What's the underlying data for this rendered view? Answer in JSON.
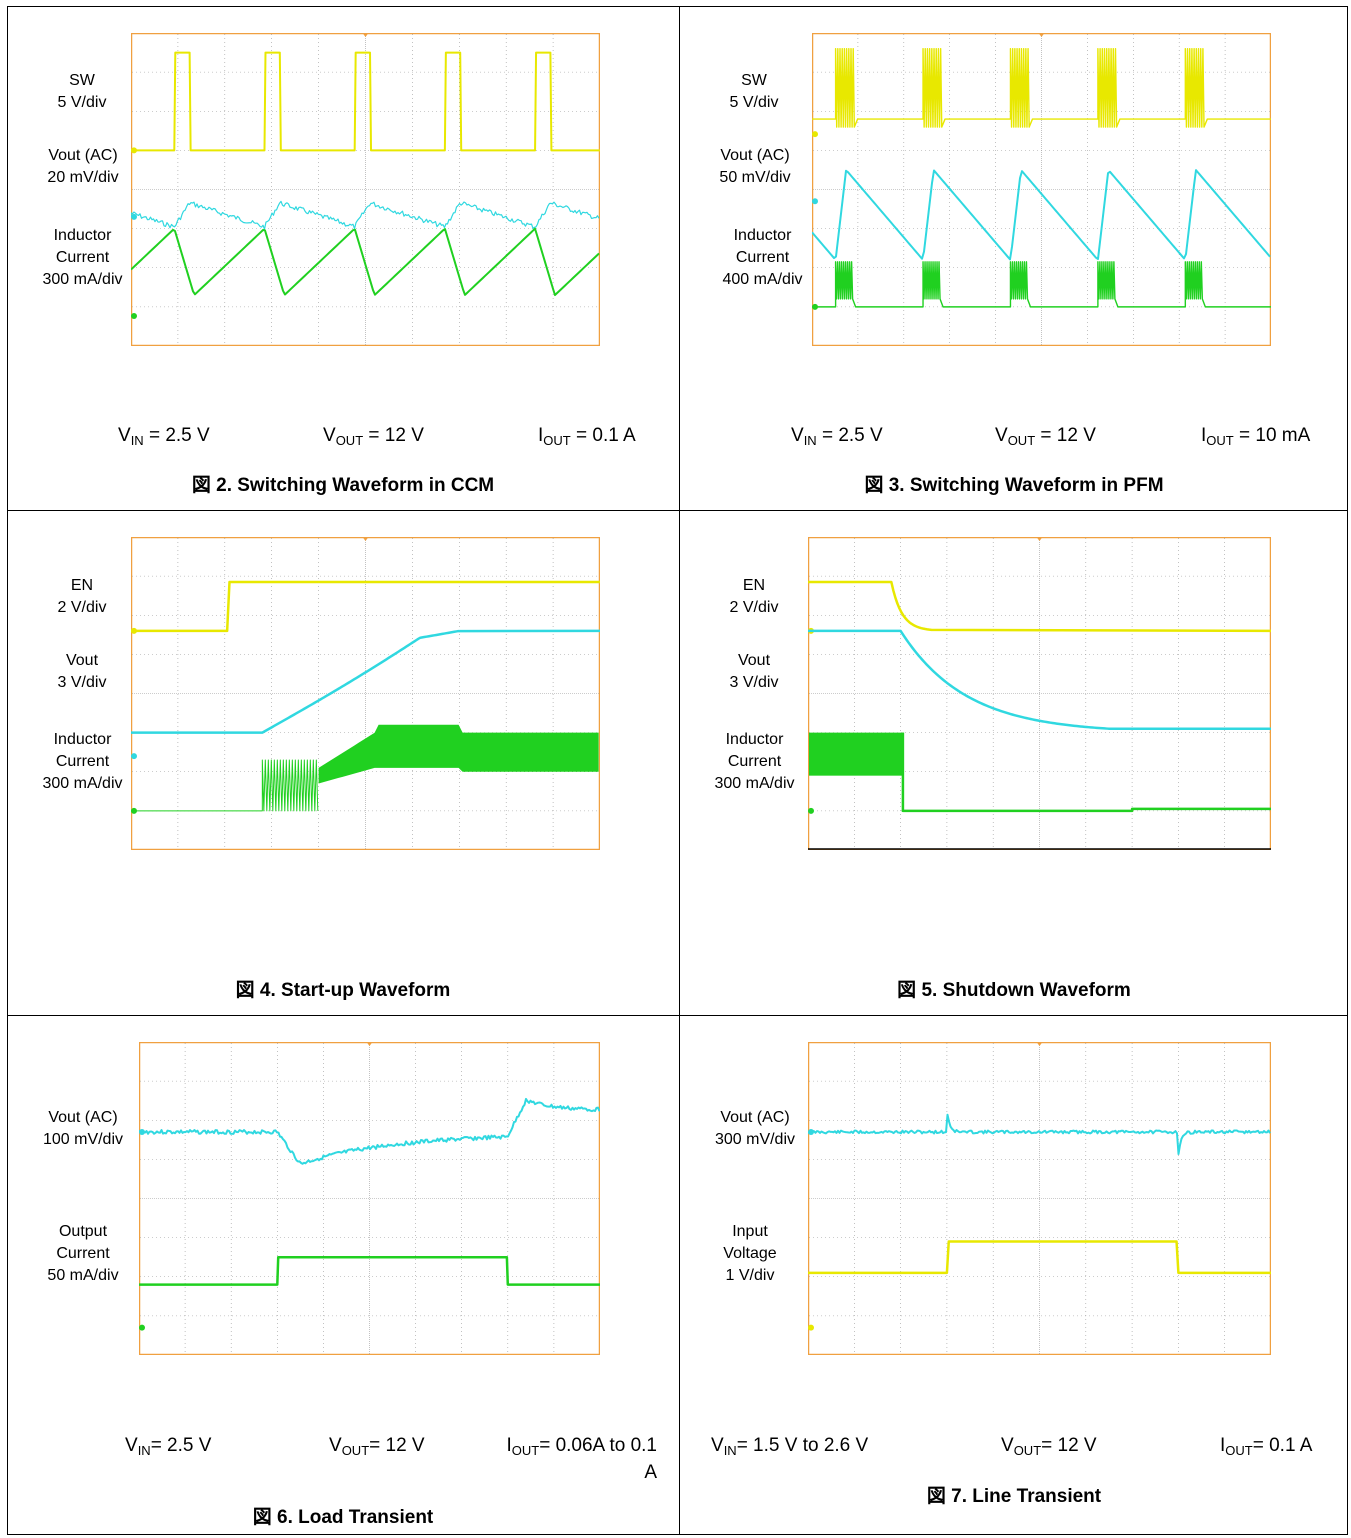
{
  "colors": {
    "grid": "#9a9a9a",
    "border": "#f0a040",
    "yellow": "#e8e800",
    "cyan": "#30d8e0",
    "green": "#20d020"
  },
  "chart_data": [
    {
      "type": "line",
      "figure": "fig2",
      "caption": "図 2. Switching Waveform in CCM",
      "grid": true,
      "divisions": {
        "x": 10,
        "y": 8
      },
      "channels": [
        {
          "name_lines": [
            "SW",
            "5 V/div"
          ],
          "color": "yellow",
          "waveform": "pulse-train",
          "baseline_div": 1.8,
          "high_div": 0.2,
          "periods": 5,
          "duty": 0.17
        },
        {
          "name_lines": [
            "Vout (AC)",
            "20 mV/div"
          ],
          "color": "cyan",
          "waveform": "ripple",
          "baseline_div": 3.4,
          "periods": 5
        },
        {
          "name_lines": [
            "Inductor",
            "Current",
            "300 mA/div"
          ],
          "color": "green",
          "waveform": "triangle",
          "baseline_div": 4.8,
          "amplitude_div": 1.0,
          "periods": 5
        }
      ],
      "conditions": [
        {
          "main": "V",
          "sub": "IN",
          "rest": " = 2.5 V"
        },
        {
          "main": "V",
          "sub": "OUT",
          "rest": " = 12 V"
        },
        {
          "main": "I",
          "sub": "OUT",
          "rest": " = 0.1 A"
        }
      ]
    },
    {
      "type": "line",
      "figure": "fig3",
      "caption": "図 3. Switching Waveform in PFM",
      "grid": true,
      "divisions": {
        "x": 10,
        "y": 8
      },
      "channels": [
        {
          "name_lines": [
            "SW",
            "5 V/div"
          ],
          "color": "yellow",
          "waveform": "burst",
          "baseline_div": 2.2,
          "high_div": 1.0,
          "periods": 5
        },
        {
          "name_lines": [
            "Vout (AC)",
            "50 mV/div"
          ],
          "color": "cyan",
          "waveform": "sawtooth",
          "baseline_div": 4.0,
          "periods": 5
        },
        {
          "name_lines": [
            "Inductor",
            "Current",
            "400 mA/div"
          ],
          "color": "green",
          "waveform": "burst-low",
          "baseline_div": 7.0,
          "periods": 5
        }
      ],
      "conditions": [
        {
          "main": "V",
          "sub": "IN",
          "rest": " = 2.5 V"
        },
        {
          "main": "V",
          "sub": "OUT",
          "rest": " = 12 V"
        },
        {
          "main": "I",
          "sub": "OUT",
          "rest": " = 10 mA"
        }
      ]
    },
    {
      "type": "line",
      "figure": "fig4",
      "caption": "図 4. Start-up Waveform",
      "grid": true,
      "divisions": {
        "x": 10,
        "y": 8
      },
      "channels": [
        {
          "name_lines": [
            "EN",
            "2 V/div"
          ],
          "color": "yellow",
          "waveform": "step-up"
        },
        {
          "name_lines": [
            "Vout",
            "3 V/div"
          ],
          "color": "cyan",
          "waveform": "ramp-up"
        },
        {
          "name_lines": [
            "Inductor",
            "Current",
            "300 mA/div"
          ],
          "color": "green",
          "waveform": "startup-current"
        }
      ],
      "conditions": []
    },
    {
      "type": "line",
      "figure": "fig5",
      "caption": "図 5. Shutdown Waveform",
      "grid": true,
      "divisions": {
        "x": 10,
        "y": 8
      },
      "channels": [
        {
          "name_lines": [
            "EN",
            "2 V/div"
          ],
          "color": "yellow",
          "waveform": "step-down"
        },
        {
          "name_lines": [
            "Vout",
            "3 V/div"
          ],
          "color": "cyan",
          "waveform": "decay"
        },
        {
          "name_lines": [
            "Inductor",
            "Current",
            "300 mA/div"
          ],
          "color": "green",
          "waveform": "shutdown-current"
        }
      ],
      "conditions": []
    },
    {
      "type": "line",
      "figure": "fig6",
      "caption": "図 6. Load Transient",
      "grid": true,
      "divisions": {
        "x": 10,
        "y": 8
      },
      "channels": [
        {
          "name_lines": [
            "Vout (AC)",
            "100 mV/div"
          ],
          "color": "cyan",
          "waveform": "load-response"
        },
        {
          "name_lines": [
            "Output",
            "Current",
            "50 mA/div"
          ],
          "color": "green",
          "waveform": "load-step"
        }
      ],
      "conditions": [
        {
          "main": "V",
          "sub": "IN",
          "rest": "= 2.5 V"
        },
        {
          "main": "V",
          "sub": "OUT",
          "rest": "= 12 V"
        },
        {
          "main": "I",
          "sub": "OUT",
          "rest": "= 0.06A to 0.1",
          "wrap": "A"
        }
      ]
    },
    {
      "type": "line",
      "figure": "fig7",
      "caption": "図 7. Line Transient",
      "grid": true,
      "divisions": {
        "x": 10,
        "y": 8
      },
      "channels": [
        {
          "name_lines": [
            "Vout (AC)",
            "300 mV/div"
          ],
          "color": "cyan",
          "waveform": "line-response"
        },
        {
          "name_lines": [
            "Input",
            "Voltage",
            "1 V/div"
          ],
          "color": "yellow",
          "waveform": "line-step"
        }
      ],
      "conditions": [
        {
          "main": "V",
          "sub": "IN",
          "rest": "= 1.5 V to 2.6 V"
        },
        {
          "main": "V",
          "sub": "OUT",
          "rest": "= 12 V"
        },
        {
          "main": "I",
          "sub": "OUT",
          "rest": "= 0.1 A"
        }
      ]
    }
  ]
}
